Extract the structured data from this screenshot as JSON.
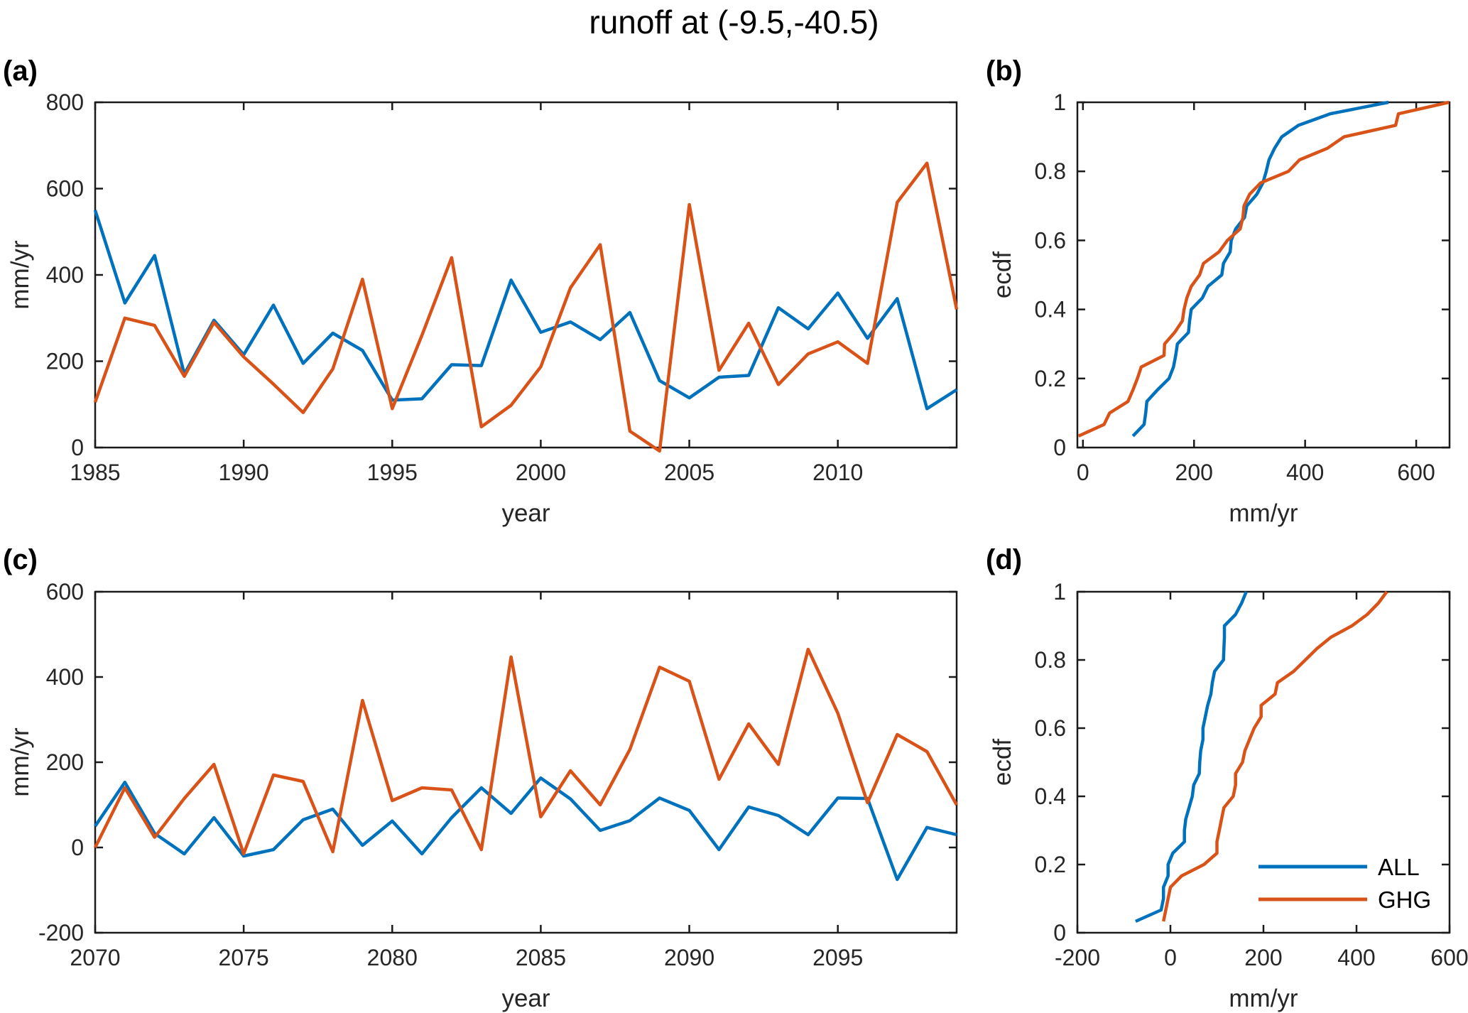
{
  "title": "runoff at (-9.5,-40.5)",
  "colors": {
    "all_series": "#0072BD",
    "ghg_series": "#D95319",
    "axis": "#1a1a1a",
    "tick_text": "#262626",
    "background": "#ffffff"
  },
  "legend": {
    "location": "lower-right of panel (d)",
    "entries": [
      {
        "label": "ALL",
        "color": "#0072BD"
      },
      {
        "label": "GHG",
        "color": "#D95319"
      }
    ]
  },
  "chart_data": [
    {
      "id": "a",
      "panel_label": "(a)",
      "type": "line",
      "xlabel": "year",
      "ylabel": "mm/yr",
      "xlim": [
        1985,
        2014
      ],
      "ylim": [
        0,
        800
      ],
      "xticks": [
        1985,
        1990,
        1995,
        2000,
        2005,
        2010
      ],
      "yticks": [
        0,
        200,
        400,
        600,
        800
      ],
      "x": [
        1985,
        1986,
        1987,
        1988,
        1989,
        1990,
        1991,
        1992,
        1993,
        1994,
        1995,
        1996,
        1997,
        1998,
        1999,
        2000,
        2001,
        2002,
        2003,
        2004,
        2005,
        2006,
        2007,
        2008,
        2009,
        2010,
        2011,
        2012,
        2013,
        2014
      ],
      "series": [
        {
          "name": "ALL",
          "color": "#0072BD",
          "values": [
            550,
            335,
            445,
            170,
            295,
            215,
            330,
            195,
            265,
            225,
            110,
            113,
            192,
            190,
            388,
            267,
            291,
            250,
            313,
            155,
            115,
            163,
            167,
            324,
            275,
            358,
            253,
            345,
            90,
            134
          ]
        },
        {
          "name": "GHG",
          "color": "#D95319",
          "values": [
            105,
            300,
            283,
            165,
            290,
            210,
            147,
            81,
            182,
            390,
            90,
            260,
            440,
            48,
            98,
            187,
            370,
            470,
            38,
            -8,
            563,
            179,
            288,
            146,
            217,
            245,
            195,
            568,
            659,
            320
          ]
        }
      ]
    },
    {
      "id": "b",
      "panel_label": "(b)",
      "type": "line",
      "subtype": "ecdf",
      "derived_from": "a",
      "xlabel": "mm/yr",
      "ylabel": "ecdf",
      "xlim": [
        -10,
        660
      ],
      "ylim": [
        0,
        1
      ],
      "xticks": [
        0,
        200,
        400,
        600
      ],
      "yticks": [
        0,
        0.2,
        0.4,
        0.6,
        0.8,
        1
      ]
    },
    {
      "id": "c",
      "panel_label": "(c)",
      "type": "line",
      "xlabel": "year",
      "ylabel": "mm/yr",
      "xlim": [
        2070,
        2099
      ],
      "ylim": [
        -200,
        600
      ],
      "xticks": [
        2070,
        2075,
        2080,
        2085,
        2090,
        2095
      ],
      "yticks": [
        -200,
        0,
        200,
        400,
        600
      ],
      "x": [
        2070,
        2071,
        2072,
        2073,
        2074,
        2075,
        2076,
        2077,
        2078,
        2079,
        2080,
        2081,
        2082,
        2083,
        2084,
        2085,
        2086,
        2087,
        2088,
        2089,
        2090,
        2091,
        2092,
        2093,
        2094,
        2095,
        2096,
        2097,
        2098,
        2099
      ],
      "series": [
        {
          "name": "ALL",
          "color": "#0072BD",
          "values": [
            50,
            153,
            33,
            -15,
            70,
            -20,
            -5,
            65,
            90,
            5,
            62,
            -15,
            70,
            140,
            80,
            163,
            114,
            40,
            63,
            116,
            87,
            -5,
            95,
            75,
            30,
            116,
            115,
            -75,
            47,
            30
          ]
        },
        {
          "name": "GHG",
          "color": "#D95319",
          "values": [
            0,
            140,
            24,
            115,
            195,
            -15,
            170,
            155,
            -10,
            345,
            110,
            140,
            135,
            -5,
            447,
            72,
            180,
            100,
            230,
            423,
            390,
            160,
            290,
            195,
            465,
            315,
            105,
            265,
            225,
            100
          ]
        }
      ]
    },
    {
      "id": "d",
      "panel_label": "(d)",
      "type": "line",
      "subtype": "ecdf",
      "derived_from": "c",
      "xlabel": "mm/yr",
      "ylabel": "ecdf",
      "xlim": [
        -200,
        600
      ],
      "ylim": [
        0,
        1
      ],
      "xticks": [
        -200,
        0,
        200,
        400,
        600
      ],
      "yticks": [
        0,
        0.2,
        0.4,
        0.6,
        0.8,
        1
      ],
      "show_legend": true
    }
  ]
}
